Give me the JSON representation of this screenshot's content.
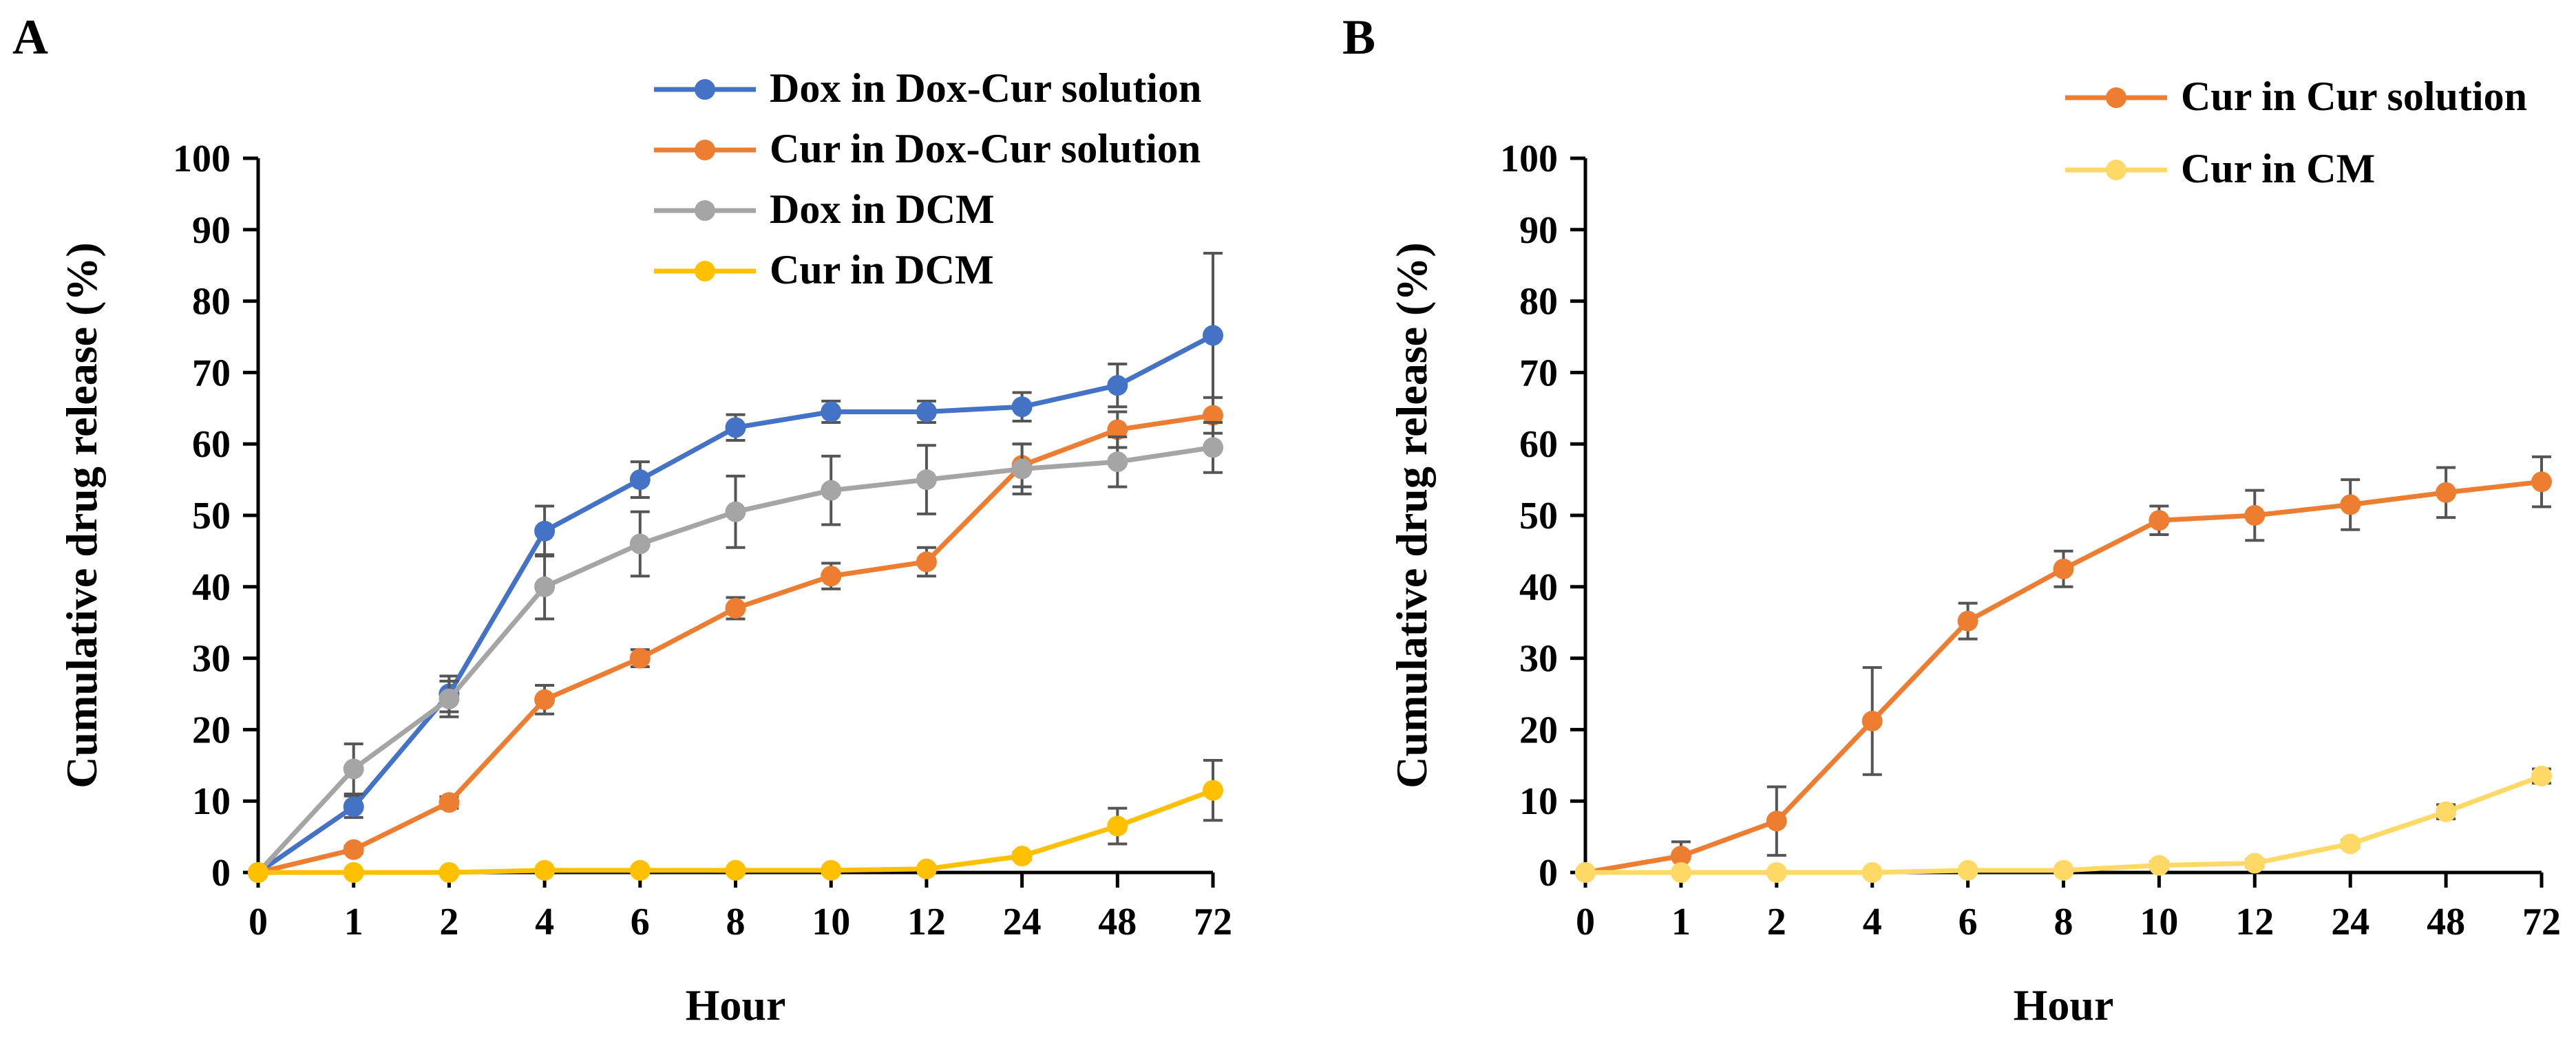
{
  "chart_data": [
    {
      "panel": "A",
      "type": "line",
      "xlabel": "Hour",
      "ylabel": "Cumulative drug release (%)",
      "ylim": [
        0,
        100
      ],
      "yticks": [
        "0",
        "10",
        "20",
        "30",
        "40",
        "50",
        "60",
        "70",
        "80",
        "90",
        "100"
      ],
      "categories": [
        "0",
        "1",
        "2",
        "4",
        "6",
        "8",
        "10",
        "12",
        "24",
        "48",
        "72"
      ],
      "series": [
        {
          "name": "Dox in Dox-Cur solution",
          "color": "#4472C4",
          "values": [
            0,
            9.2,
            25,
            47.8,
            55,
            62.3,
            64.5,
            64.5,
            65.2,
            68.2,
            75.2
          ],
          "errors": [
            0,
            1.5,
            2.5,
            3.5,
            2.5,
            1.8,
            1.5,
            1.5,
            2.0,
            3.0,
            11.5
          ]
        },
        {
          "name": "Cur in Dox-Cur solution",
          "color": "#ED7D31",
          "values": [
            0,
            3.2,
            9.8,
            24.2,
            30,
            37,
            41.5,
            43.5,
            57,
            62,
            64
          ],
          "errors": [
            0,
            0.5,
            0.8,
            2.0,
            1.2,
            1.5,
            1.8,
            2.0,
            3.0,
            2.5,
            2.5
          ]
        },
        {
          "name": "Dox in DCM",
          "color": "#A5A5A5",
          "values": [
            0,
            14.5,
            24.3,
            40,
            46,
            50.5,
            53.5,
            55,
            56.5,
            57.5,
            59.5
          ],
          "errors": [
            0,
            3.5,
            2.5,
            4.5,
            4.5,
            5.0,
            4.8,
            4.8,
            3.5,
            3.5,
            3.5
          ]
        },
        {
          "name": "Cur in DCM",
          "color": "#FFC000",
          "values": [
            0,
            0,
            0,
            0.3,
            0.3,
            0.3,
            0.3,
            0.5,
            2.3,
            6.5,
            11.5
          ],
          "errors": [
            0,
            0,
            0,
            0,
            0,
            0,
            0,
            0.3,
            0.5,
            2.5,
            4.2
          ]
        }
      ]
    },
    {
      "panel": "B",
      "type": "line",
      "xlabel": "Hour",
      "ylabel": "Cumulative drug release (%)",
      "ylim": [
        0,
        100
      ],
      "yticks": [
        "0",
        "10",
        "20",
        "30",
        "40",
        "50",
        "60",
        "70",
        "80",
        "90",
        "100"
      ],
      "categories": [
        "0",
        "1",
        "2",
        "4",
        "6",
        "8",
        "10",
        "12",
        "24",
        "48",
        "72"
      ],
      "series": [
        {
          "name": "Cur in Cur solution",
          "color": "#ED7D31",
          "values": [
            0,
            2.3,
            7.2,
            21.2,
            35.2,
            42.5,
            49.3,
            50,
            51.5,
            53.2,
            54.7
          ],
          "errors": [
            0,
            2.0,
            4.8,
            7.5,
            2.5,
            2.5,
            2.0,
            3.5,
            3.5,
            3.5,
            3.5
          ]
        },
        {
          "name": "Cur in CM",
          "color": "#FFD966",
          "values": [
            0,
            0,
            0,
            0,
            0.3,
            0.3,
            1.0,
            1.3,
            4.0,
            8.5,
            13.5
          ],
          "errors": [
            0,
            0,
            0,
            0,
            0,
            0,
            0.5,
            0.5,
            0.5,
            1.0,
            1.0
          ]
        }
      ]
    }
  ]
}
